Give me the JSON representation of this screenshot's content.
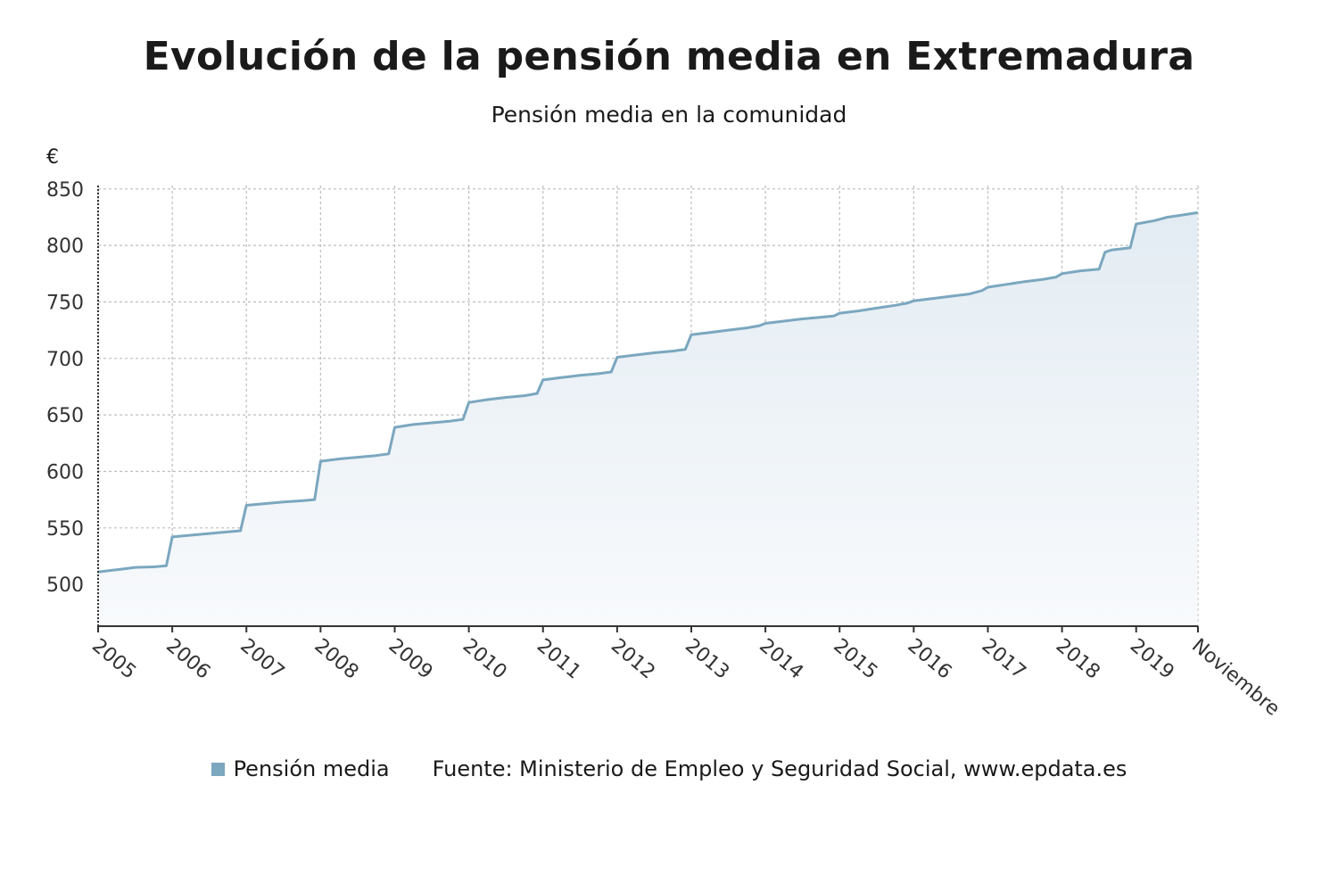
{
  "header": {
    "title": "Evolución de la pensión media en Extremadura",
    "subtitle": "Pensión media en la comunidad",
    "unit": "€"
  },
  "footer": {
    "legend_label": "Pensión media",
    "source": "Fuente: Ministerio de Empleo y Seguridad Social, www.epdata.es"
  },
  "colors": {
    "line": "#7ba7bf",
    "area_top": "#e3ecf3",
    "area_bottom": "#f8fafc",
    "grid": "#bdbdbd",
    "axis": "#333333",
    "text": "#333333"
  },
  "chart_data": {
    "type": "area",
    "title": "Evolución de la pensión media en Extremadura",
    "subtitle": "Pensión media en la comunidad",
    "ylabel": "€",
    "xlabel": "",
    "ylim": [
      463,
      853
    ],
    "xlim": [
      2005.0,
      2019.8333
    ],
    "yticks": [
      500,
      550,
      600,
      650,
      700,
      750,
      800,
      850
    ],
    "xticks": [
      {
        "x": 2005,
        "label": "2005"
      },
      {
        "x": 2006,
        "label": "2006"
      },
      {
        "x": 2007,
        "label": "2007"
      },
      {
        "x": 2008,
        "label": "2008"
      },
      {
        "x": 2009,
        "label": "2009"
      },
      {
        "x": 2010,
        "label": "2010"
      },
      {
        "x": 2011,
        "label": "2011"
      },
      {
        "x": 2012,
        "label": "2012"
      },
      {
        "x": 2013,
        "label": "2013"
      },
      {
        "x": 2014,
        "label": "2014"
      },
      {
        "x": 2015,
        "label": "2015"
      },
      {
        "x": 2016,
        "label": "2016"
      },
      {
        "x": 2017,
        "label": "2017"
      },
      {
        "x": 2018,
        "label": "2018"
      },
      {
        "x": 2019,
        "label": "2019"
      },
      {
        "x": 2019.8333,
        "label": "Noviembre"
      }
    ],
    "grid": true,
    "legend_position": "bottom",
    "series": [
      {
        "name": "Pensión media",
        "x": [
          2005.0,
          2005.25,
          2005.5,
          2005.75,
          2005.92,
          2006.0,
          2006.25,
          2006.5,
          2006.75,
          2006.92,
          2007.0,
          2007.25,
          2007.5,
          2007.75,
          2007.92,
          2008.0,
          2008.25,
          2008.5,
          2008.75,
          2008.92,
          2009.0,
          2009.25,
          2009.5,
          2009.75,
          2009.92,
          2010.0,
          2010.25,
          2010.5,
          2010.75,
          2010.92,
          2011.0,
          2011.25,
          2011.5,
          2011.75,
          2011.92,
          2012.0,
          2012.25,
          2012.5,
          2012.75,
          2012.92,
          2013.0,
          2013.25,
          2013.5,
          2013.75,
          2013.92,
          2014.0,
          2014.25,
          2014.5,
          2014.75,
          2014.92,
          2015.0,
          2015.25,
          2015.5,
          2015.75,
          2015.92,
          2016.0,
          2016.25,
          2016.5,
          2016.75,
          2016.92,
          2017.0,
          2017.25,
          2017.5,
          2017.75,
          2017.92,
          2018.0,
          2018.25,
          2018.5,
          2018.58,
          2018.67,
          2018.92,
          2019.0,
          2019.25,
          2019.42,
          2019.58,
          2019.83
        ],
        "values": [
          511,
          513,
          515,
          515.5,
          516.5,
          542,
          543.5,
          545,
          546.5,
          547.5,
          570,
          571.5,
          573,
          574,
          575,
          609,
          611,
          612.5,
          614,
          615.5,
          639,
          641.5,
          643,
          644.5,
          646,
          661,
          663.5,
          665.5,
          667,
          669,
          681,
          683,
          685,
          686.5,
          688,
          701,
          703,
          705,
          706.5,
          708,
          721,
          723,
          725,
          727,
          729,
          731,
          733,
          735,
          736.5,
          737.5,
          740,
          742,
          744.5,
          747,
          749,
          751,
          753,
          755,
          757,
          760,
          763,
          765.5,
          768,
          770,
          772,
          775,
          777.5,
          779,
          794,
          796,
          798,
          819,
          822,
          825,
          826.5,
          829
        ]
      }
    ]
  }
}
